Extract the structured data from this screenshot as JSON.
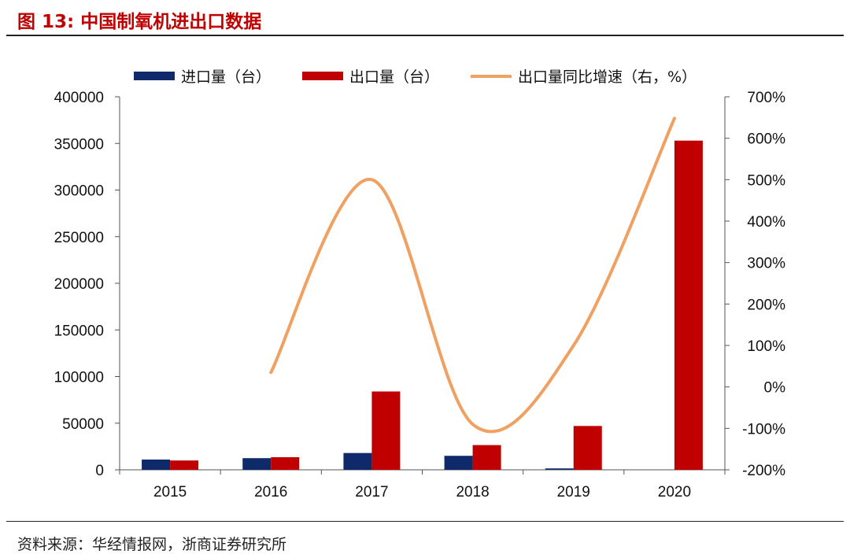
{
  "figure": {
    "title": "图 13: 中国制氧机进出口数据",
    "source": "资料来源：华经情报网，浙商证券研究所"
  },
  "colors": {
    "import": "#0f2a6b",
    "export": "#c00000",
    "growth": "#f0a060",
    "title": "#c00000"
  },
  "chart_data": {
    "type": "bar",
    "categories": [
      "2015",
      "2016",
      "2017",
      "2018",
      "2019",
      "2020"
    ],
    "series": [
      {
        "name": "进口量（台）",
        "kind": "bar",
        "axis": "left",
        "values": [
          11000,
          12500,
          18000,
          15000,
          1500,
          0
        ]
      },
      {
        "name": "出口量（台）",
        "kind": "bar",
        "axis": "left",
        "values": [
          10000,
          13500,
          84000,
          26500,
          47000,
          353000
        ]
      },
      {
        "name": "出口量同比增速（右，%）",
        "kind": "line",
        "axis": "right",
        "values": [
          null,
          35,
          500,
          -90,
          100,
          648
        ]
      }
    ],
    "left_axis": {
      "ylim": [
        0,
        400000
      ],
      "ticks": [
        "0",
        "50000",
        "100000",
        "150000",
        "200000",
        "250000",
        "300000",
        "350000",
        "400000"
      ]
    },
    "right_axis": {
      "ylim": [
        -200,
        700
      ],
      "ticks": [
        "-200%",
        "-100%",
        "0%",
        "100%",
        "200%",
        "300%",
        "400%",
        "500%",
        "600%",
        "700%"
      ]
    },
    "legend_position": "top",
    "grid": false
  }
}
